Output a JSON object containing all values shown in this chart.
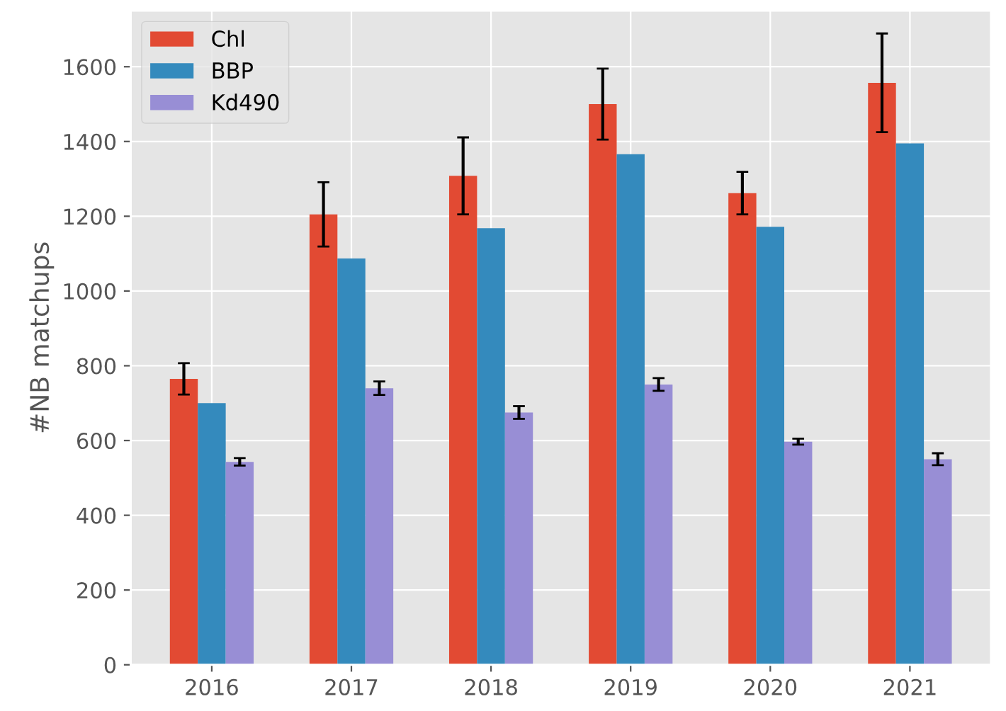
{
  "chart_data": {
    "type": "bar",
    "ylabel": "#NB matchups",
    "categories": [
      "2016",
      "2017",
      "2018",
      "2019",
      "2020",
      "2021"
    ],
    "series": [
      {
        "name": "Chl",
        "color": "#e24a33",
        "values": [
          765,
          1205,
          1308,
          1500,
          1262,
          1557
        ],
        "errors": [
          42,
          86,
          103,
          95,
          57,
          132
        ]
      },
      {
        "name": "BBP",
        "color": "#348abd",
        "values": [
          700,
          1087,
          1168,
          1366,
          1172,
          1395
        ]
      },
      {
        "name": "Kd490",
        "color": "#988ed5",
        "values": [
          543,
          740,
          675,
          750,
          597,
          550
        ],
        "errors": [
          10,
          18,
          17,
          17,
          8,
          16
        ]
      }
    ],
    "ylim": [
      0,
      1750
    ],
    "yticks": [
      0,
      200,
      400,
      600,
      800,
      1000,
      1200,
      1400,
      1600
    ],
    "grid": true,
    "legend": "top left"
  }
}
